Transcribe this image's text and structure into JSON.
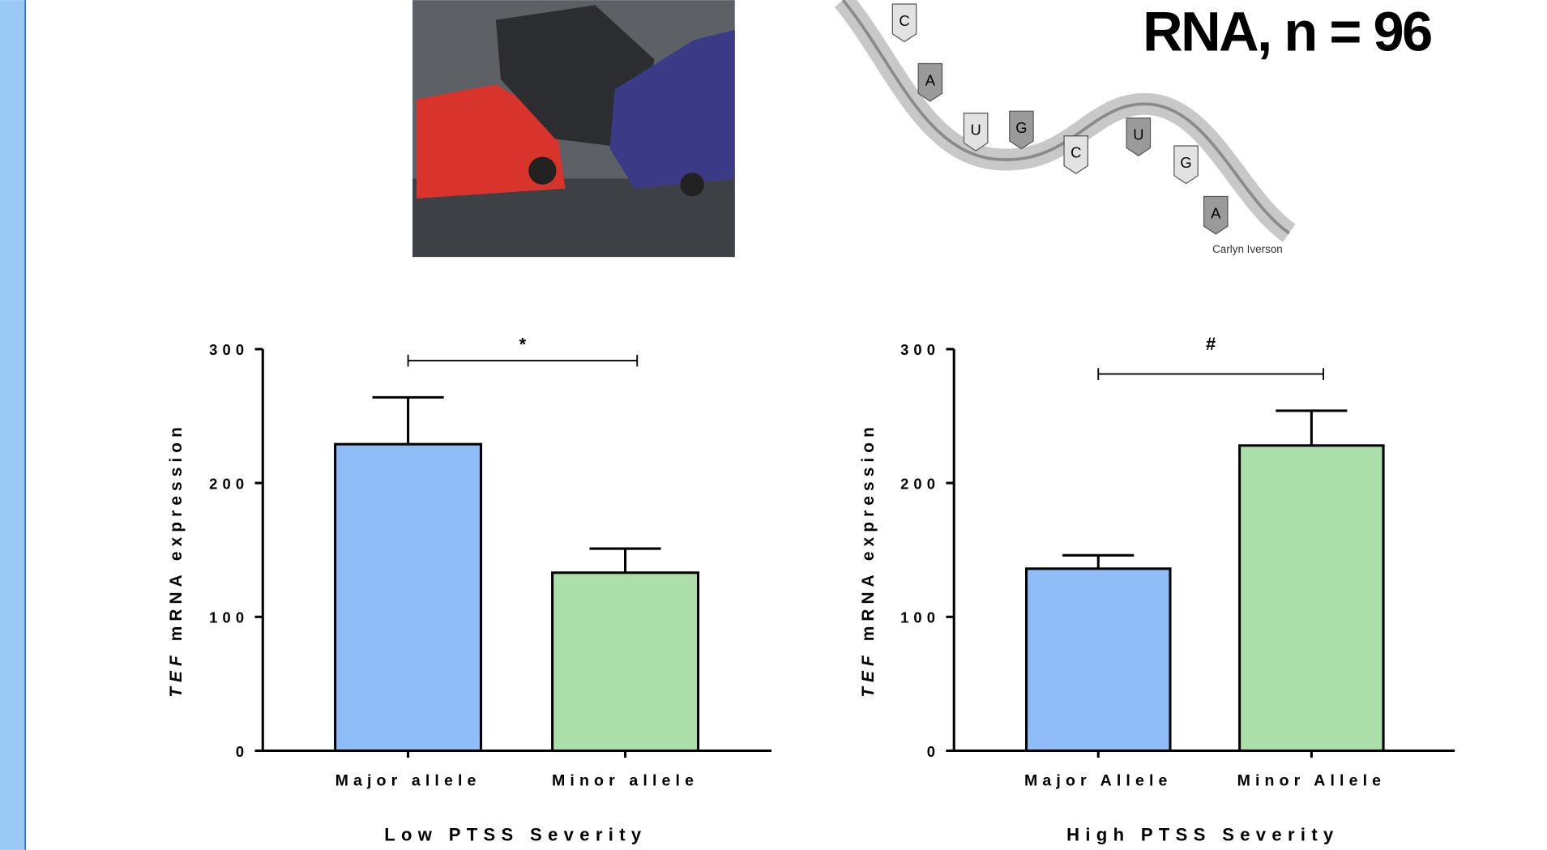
{
  "header": {
    "title": "RNA, n = 96",
    "image_credit": "Carlyn Iverson",
    "rna_bases": [
      "C",
      "A",
      "U",
      "G",
      "C",
      "U",
      "G",
      "A"
    ]
  },
  "chart_data": [
    {
      "type": "bar",
      "ylabel_gene": "TEF",
      "ylabel": "mRNA expression",
      "xlabel": "Low PTSS Severity",
      "categories": [
        "Major allele",
        "Minor allele"
      ],
      "values": [
        229,
        133
      ],
      "errors": [
        35,
        18
      ],
      "colors": [
        "#8fbdf7",
        "#acdfaa"
      ],
      "ylim": [
        0,
        300
      ],
      "yticks": [
        0,
        100,
        200,
        300
      ],
      "annotation": "*"
    },
    {
      "type": "bar",
      "ylabel_gene": "TEF",
      "ylabel": "mRNA expression",
      "xlabel": "High PTSS Severity",
      "categories": [
        "Major Allele",
        "Minor Allele"
      ],
      "values": [
        136,
        228
      ],
      "errors": [
        10,
        26
      ],
      "colors": [
        "#8fbdf7",
        "#acdfaa"
      ],
      "ylim": [
        0,
        300
      ],
      "yticks": [
        0,
        100,
        200,
        300
      ],
      "annotation": "#"
    }
  ]
}
